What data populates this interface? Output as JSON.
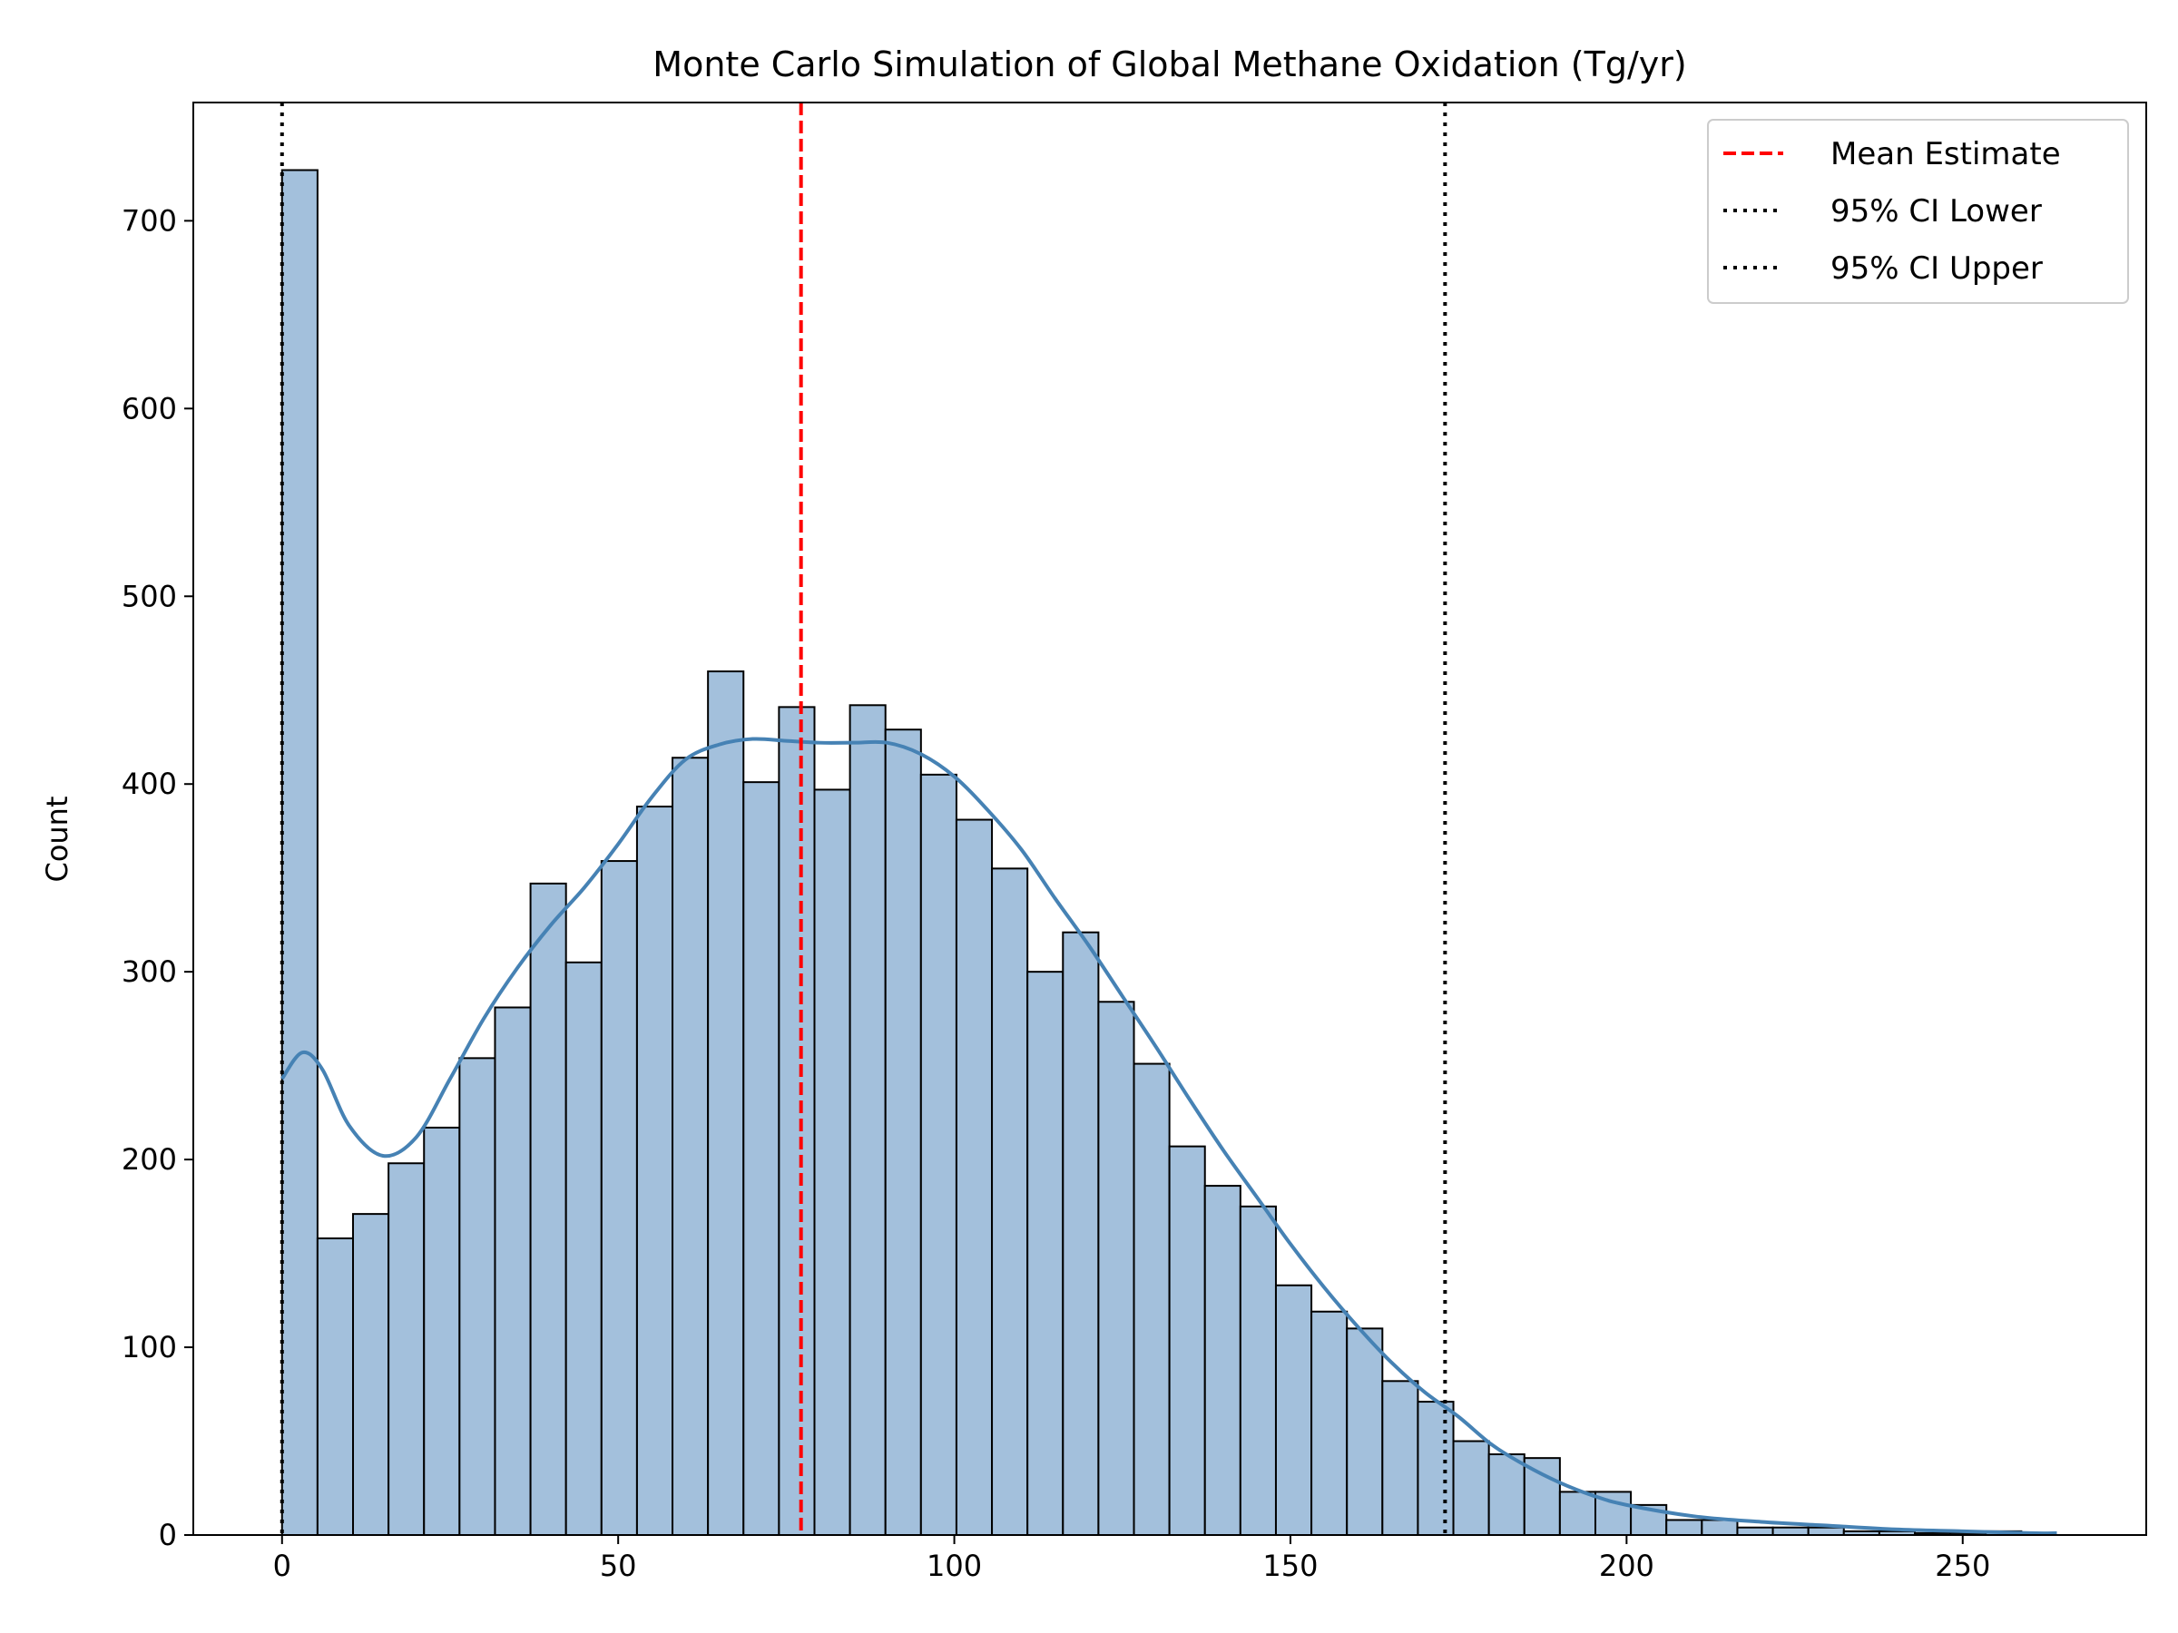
{
  "chart_data": {
    "type": "histogram",
    "title": "Monte Carlo Simulation of Global Methane Oxidation (Tg/yr)",
    "xlabel": "",
    "ylabel": "Count",
    "xlim": [
      -13.2,
      277.3
    ],
    "ylim": [
      0,
      763
    ],
    "x_ticks": [
      0,
      50,
      100,
      150,
      200,
      250
    ],
    "y_ticks": [
      0,
      100,
      200,
      300,
      400,
      500,
      600,
      700
    ],
    "bin_start": 0,
    "bin_width": 5.28,
    "counts": [
      727,
      158,
      171,
      198,
      217,
      254,
      281,
      347,
      305,
      359,
      388,
      414,
      460,
      401,
      441,
      397,
      442,
      429,
      405,
      381,
      355,
      300,
      321,
      284,
      251,
      207,
      186,
      175,
      133,
      119,
      110,
      82,
      71,
      50,
      43,
      41,
      23,
      23,
      16,
      8,
      8,
      4,
      4,
      4,
      2,
      2,
      1,
      1,
      2
    ],
    "bar_fill": "#a3c0dc",
    "bar_edge": "#000000",
    "kde": {
      "color": "#4682b4",
      "x": [
        0,
        3,
        6,
        10,
        15,
        20,
        25,
        30,
        35,
        40,
        45,
        50,
        55,
        60,
        65,
        70,
        75,
        80,
        85,
        90,
        95,
        100,
        105,
        110,
        115,
        120,
        125,
        130,
        135,
        140,
        145,
        150,
        155,
        160,
        165,
        170,
        175,
        180,
        185,
        190,
        195,
        200,
        210,
        220,
        230,
        240,
        250,
        260,
        264
      ],
      "y": [
        243,
        257,
        248,
        218,
        202,
        212,
        243,
        275,
        302,
        325,
        345,
        368,
        393,
        413,
        421,
        424,
        423,
        422,
        422,
        422,
        416,
        404,
        386,
        365,
        339,
        314,
        287,
        260,
        232,
        205,
        180,
        155,
        132,
        111,
        92,
        76,
        63,
        48,
        37,
        28,
        21,
        16,
        10,
        7,
        5,
        3,
        2,
        1,
        1
      ]
    },
    "vlines": [
      {
        "label": "Mean Estimate",
        "x": 77.2,
        "color": "#ff0000",
        "style": "dashed"
      },
      {
        "label": "95% CI Lower",
        "x": 0,
        "color": "#000000",
        "style": "dotted"
      },
      {
        "label": "95% CI Upper",
        "x": 173,
        "color": "#000000",
        "style": "dotted"
      }
    ],
    "legend_placement": "top-right",
    "grid": false
  }
}
